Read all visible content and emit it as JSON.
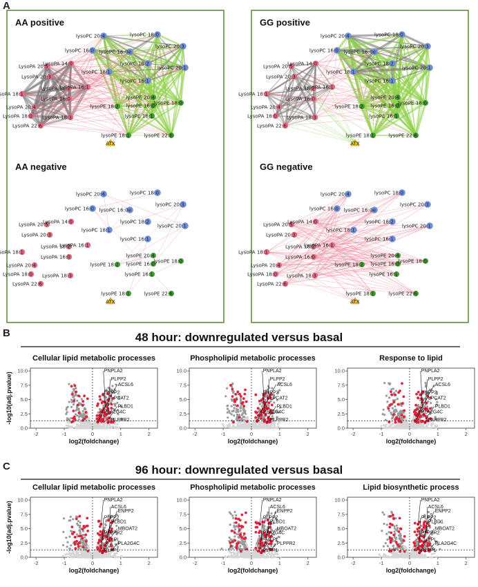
{
  "panel_labels": [
    "A",
    "B",
    "C"
  ],
  "networks": [
    {
      "title": "AA positive",
      "mode": "dense_pos"
    },
    {
      "title": "GG positive",
      "mode": "dense_pos_gg"
    },
    {
      "title": "AA negative",
      "mode": "sparse"
    },
    {
      "title": "GG negative",
      "mode": "dense_neg"
    }
  ],
  "nodes": [
    {
      "label": "lysoPC 20:4",
      "group": "pc"
    },
    {
      "label": "lysoPC 18:0",
      "group": "pc"
    },
    {
      "label": "lysoPC 16:0",
      "group": "pc"
    },
    {
      "label": "lysoPC 16:0e",
      "group": "pc"
    },
    {
      "label": "lysoPC 20:3",
      "group": "pc"
    },
    {
      "label": "lysoPC 18:2",
      "group": "pc"
    },
    {
      "label": "lysoPC 18:1",
      "group": "pc"
    },
    {
      "label": "lysoPC 20:1",
      "group": "pc"
    },
    {
      "label": "lysoPC 16:1",
      "group": "pc"
    },
    {
      "label": "LysoPA 20:5",
      "group": "pa"
    },
    {
      "label": "LysoPA 14:0",
      "group": "pa"
    },
    {
      "label": "LysoPA 20:3",
      "group": "pa"
    },
    {
      "label": "LysoPA 18:2",
      "group": "pa"
    },
    {
      "label": "LysoPA 16:1",
      "group": "pa"
    },
    {
      "label": "LysoPA 18:1",
      "group": "pa"
    },
    {
      "label": "LysoPA 16:0",
      "group": "pa"
    },
    {
      "label": "LysoPA 20:4",
      "group": "pa"
    },
    {
      "label": "LysoPA 18:0",
      "group": "pa"
    },
    {
      "label": "LysoPA 18:3",
      "group": "pa"
    },
    {
      "label": "LysoPA 22:6",
      "group": "pa"
    },
    {
      "label": "lysoPE 20:4",
      "group": "pe"
    },
    {
      "label": "lysoPE 18:2",
      "group": "pe"
    },
    {
      "label": "lysoPE 16:0",
      "group": "pe"
    },
    {
      "label": "lysoPE 18:0",
      "group": "pe"
    },
    {
      "label": "lysoPE 16:1",
      "group": "pe"
    },
    {
      "label": "lysoPE 18:1",
      "group": "pe"
    },
    {
      "label": "lysoPE 22:6",
      "group": "pe"
    },
    {
      "label": "ATX",
      "group": "atx"
    }
  ],
  "node_colors": {
    "pc": "#6f8fd8",
    "pa": "#e46b83",
    "pe": "#3f9f2e",
    "atx": "#f2c21d"
  },
  "edge_colors": {
    "gray": "#777777",
    "green": "#8fd14a",
    "red": "#ee6d86"
  },
  "section_b": {
    "title": "48 hour: downregulated versus basal",
    "plots": [
      {
        "title": "Cellular lipid metabolic processes",
        "genes": [
          "PNPLA2",
          "PLPP2",
          "ACSL6",
          "ENPP2",
          "LPCAT2",
          "PLBD1",
          "PLA2G4C",
          "PLPPR2"
        ]
      },
      {
        "title": "Phospholipid metabolic processes",
        "genes": [
          "PNPLA2",
          "PLPP2",
          "ACSL6",
          "ENPP2",
          "LPCAT2",
          "PLBD1",
          "PLA2G4C",
          "PLPPR2"
        ]
      },
      {
        "title": "Response to lipid",
        "genes": [
          "PNPLA2",
          "PLPP2",
          "ACSL6",
          "ENPP2",
          "LPCAT2",
          "PLBD1",
          "PLA2G4C",
          "PLPPR2"
        ]
      }
    ]
  },
  "section_c": {
    "title": "96 hour: downregulated versus basal",
    "plots": [
      {
        "title": "Cellular lipid metabolic processes",
        "genes": [
          "PNPLA2",
          "ACSL6",
          "ENPP2",
          "PLPP2",
          "PLBD1",
          "MBOAT2",
          "PLPPR2",
          "LPL",
          "PLA2G4C",
          "PLPP1"
        ]
      },
      {
        "title": "Phospholipid metabolic processes",
        "genes": [
          "PNPLA2",
          "ACSL6",
          "ENPP2",
          "PLPP2",
          "PLBD1",
          "MBOAT2",
          "PLA2G4C",
          "LPL",
          "PLPPR2",
          "PLPP1"
        ]
      },
      {
        "title": "Lipid biosynthetic process",
        "genes": [
          "PNPLA2",
          "ACSL6",
          "ENPP2",
          "PLPP2",
          "PLBD1",
          "MBOAT2",
          "PLPPR2",
          "LPL",
          "PLA2G4C",
          "PLPP1"
        ]
      }
    ]
  },
  "volcano_axes": {
    "xlabel": "log2(foldchange)",
    "ylabel": "-log10(adj.pvalue)",
    "xlim": [
      -2.2,
      2.3
    ],
    "ylim": [
      0,
      10.5
    ],
    "xticks": [
      -2,
      -1,
      0,
      1,
      2
    ],
    "yticks_b": [
      "0.0",
      "2.5",
      "5.0",
      "7.5",
      "10.0"
    ],
    "yticks_c": [
      "0.0",
      "2.5",
      "5.0",
      "7.5",
      "10.0"
    ],
    "yticks_b_vals": [
      0,
      2.5,
      5,
      7.5,
      10
    ],
    "threshold_y": 1.3
  },
  "chart_data": [
    {
      "type": "scatter",
      "title": "Cellular lipid metabolic processes",
      "xlabel": "log2(foldchange)",
      "ylabel": "-log10(adj.pvalue)",
      "xlim": [
        -2.2,
        2.3
      ],
      "ylim": [
        0,
        10.5
      ],
      "series": [
        {
          "name": "",
          "points": [
            [
              0.45,
              4.5
            ],
            [
              0.55,
              3.4
            ],
            [
              0.35,
              2.9
            ],
            [
              0.5,
              2.4
            ],
            [
              0.25,
              2.2
            ],
            [
              0.6,
              1.8
            ],
            [
              0.2,
              1.2
            ],
            [
              0.55,
              1.0
            ]
          ]
        }
      ]
    },
    {
      "type": "scatter",
      "title": "Phospholipid metabolic processes",
      "xlabel": "log2(foldchange)",
      "ylabel": "-log10(adj.pvalue)",
      "xlim": [
        -2.2,
        2.3
      ],
      "ylim": [
        0,
        10.5
      ],
      "series": [
        {
          "name": "",
          "points": [
            [
              0.45,
              4.5
            ],
            [
              0.55,
              3.4
            ],
            [
              0.35,
              2.9
            ],
            [
              0.5,
              2.4
            ],
            [
              0.25,
              2.2
            ],
            [
              0.6,
              1.8
            ],
            [
              0.2,
              1.2
            ],
            [
              0.55,
              1.0
            ]
          ]
        }
      ]
    },
    {
      "type": "scatter",
      "title": "Response to lipid",
      "xlabel": "log2(foldchange)",
      "ylabel": "-log10(adj.pvalue)",
      "xlim": [
        -2.2,
        2.3
      ],
      "ylim": [
        0,
        10.5
      ],
      "series": [
        {
          "name": "",
          "points": [
            [
              0.45,
              4.5
            ],
            [
              0.55,
              3.4
            ],
            [
              0.35,
              2.9
            ],
            [
              0.5,
              2.4
            ],
            [
              0.25,
              2.2
            ],
            [
              0.6,
              1.8
            ],
            [
              0.2,
              1.2
            ],
            [
              0.55,
              1.0
            ]
          ]
        }
      ]
    },
    {
      "type": "scatter",
      "title": "Cellular lipid metabolic processes",
      "xlabel": "log2(foldchange)",
      "ylabel": "-log10(adj.pvalue)",
      "xlim": [
        -2.2,
        2.3
      ],
      "ylim": [
        0,
        10.5
      ],
      "series": [
        {
          "name": "",
          "points": [
            [
              0.3,
              5.8
            ],
            [
              0.6,
              4.4
            ],
            [
              0.5,
              3.6
            ],
            [
              0.35,
              3.2
            ],
            [
              0.5,
              2.6
            ],
            [
              0.45,
              2.1
            ],
            [
              0.3,
              1.6
            ],
            [
              0.4,
              1.1
            ],
            [
              0.7,
              1.3
            ],
            [
              0.35,
              0.8
            ]
          ]
        }
      ]
    },
    {
      "type": "scatter",
      "title": "Phospholipid metabolic processes",
      "xlabel": "log2(foldchange)",
      "ylabel": "-log10(adj.pvalue)",
      "xlim": [
        -2.2,
        2.3
      ],
      "ylim": [
        0,
        10.5
      ],
      "series": [
        {
          "name": "",
          "points": [
            [
              0.3,
              5.8
            ],
            [
              0.6,
              4.4
            ],
            [
              0.5,
              3.6
            ],
            [
              0.35,
              3.2
            ],
            [
              0.5,
              2.6
            ],
            [
              0.45,
              2.1
            ],
            [
              0.3,
              1.6
            ],
            [
              0.4,
              1.1
            ],
            [
              0.7,
              1.3
            ],
            [
              0.35,
              0.8
            ]
          ]
        }
      ]
    },
    {
      "type": "scatter",
      "title": "Lipid biosynthetic process",
      "xlabel": "log2(foldchange)",
      "ylabel": "-log10(adj.pvalue)",
      "xlim": [
        -2.2,
        2.3
      ],
      "ylim": [
        0,
        10.5
      ],
      "series": [
        {
          "name": "",
          "points": [
            [
              0.3,
              5.8
            ],
            [
              0.6,
              4.4
            ],
            [
              0.5,
              3.6
            ],
            [
              0.35,
              3.2
            ],
            [
              0.5,
              2.6
            ],
            [
              0.45,
              2.1
            ],
            [
              0.3,
              1.6
            ],
            [
              0.4,
              1.1
            ],
            [
              0.7,
              1.3
            ],
            [
              0.35,
              0.8
            ]
          ]
        }
      ]
    }
  ]
}
